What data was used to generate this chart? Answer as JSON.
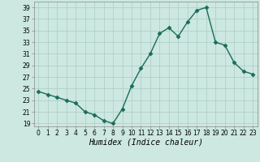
{
  "x": [
    0,
    1,
    2,
    3,
    4,
    5,
    6,
    7,
    8,
    9,
    10,
    11,
    12,
    13,
    14,
    15,
    16,
    17,
    18,
    19,
    20,
    21,
    22,
    23
  ],
  "y": [
    24.5,
    24.0,
    23.5,
    23.0,
    22.5,
    21.0,
    20.5,
    19.5,
    19.0,
    21.5,
    25.5,
    28.5,
    31.0,
    34.5,
    35.5,
    34.0,
    36.5,
    38.5,
    39.0,
    33.0,
    32.5,
    29.5,
    28.0,
    27.5
  ],
  "line_color": "#1a6b5a",
  "marker": "D",
  "marker_size": 2.5,
  "bg_color": "#cce8e0",
  "grid_color": "#aaccc4",
  "xlabel": "Humidex (Indice chaleur)",
  "ylim": [
    18.5,
    40
  ],
  "xlim": [
    -0.5,
    23.5
  ],
  "yticks": [
    19,
    21,
    23,
    25,
    27,
    29,
    31,
    33,
    35,
    37,
    39
  ],
  "xticks": [
    0,
    1,
    2,
    3,
    4,
    5,
    6,
    7,
    8,
    9,
    10,
    11,
    12,
    13,
    14,
    15,
    16,
    17,
    18,
    19,
    20,
    21,
    22,
    23
  ],
  "tick_fontsize": 5.5,
  "xlabel_fontsize": 7,
  "line_width": 1.0
}
